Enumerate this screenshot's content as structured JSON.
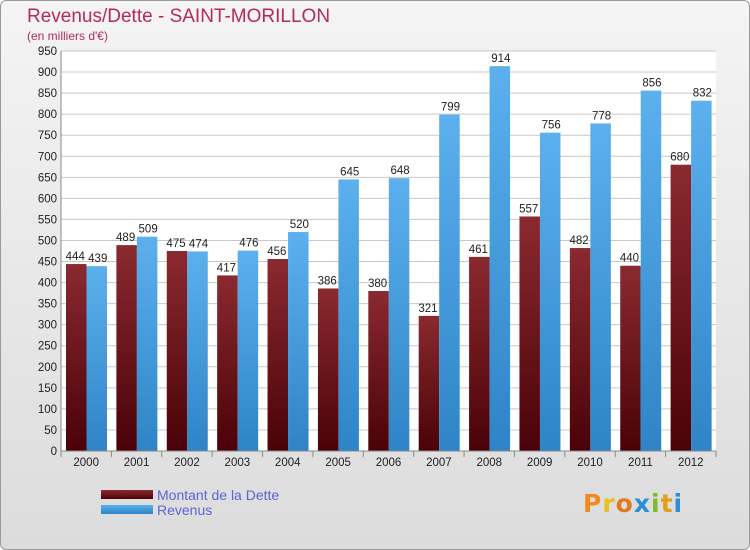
{
  "header": {
    "title": "Revenus/Dette - SAINT-MORILLON",
    "subtitle": "(en milliers d'€)"
  },
  "chart_data": {
    "type": "bar",
    "title": "Revenus/Dette - SAINT-MORILLON",
    "ylabel": "(en milliers d'€)",
    "xlabel": "",
    "categories": [
      "2000",
      "2001",
      "2002",
      "2003",
      "2004",
      "2005",
      "2006",
      "2007",
      "2008",
      "2009",
      "2010",
      "2011",
      "2012"
    ],
    "series": [
      {
        "name": "Montant de la Dette",
        "color": "#6e0e14",
        "values": [
          444,
          489,
          475,
          417,
          456,
          386,
          380,
          321,
          461,
          557,
          482,
          440,
          680
        ]
      },
      {
        "name": "Revenus",
        "color": "#4aa3e6",
        "values": [
          439,
          509,
          474,
          476,
          520,
          645,
          648,
          799,
          914,
          756,
          778,
          856,
          832
        ]
      }
    ],
    "ylim": [
      0,
      950
    ],
    "yticks": [
      0,
      50,
      100,
      150,
      200,
      250,
      300,
      350,
      400,
      450,
      500,
      550,
      600,
      650,
      700,
      750,
      800,
      850,
      900,
      950
    ],
    "grid": true,
    "legend_position": "bottom-left"
  },
  "legend": {
    "items": [
      {
        "label": "Montant de la Dette",
        "color": "#6e0e14"
      },
      {
        "label": "Revenus",
        "color": "#4aa3e6"
      }
    ]
  },
  "logo": {
    "letters": [
      "P",
      "r",
      "o",
      "x",
      "i",
      "t",
      "i"
    ],
    "colors": [
      "#f08a1a",
      "#e6c21e",
      "#e07a1e",
      "#2a8fd8",
      "#7dbb2a",
      "#e0a01e",
      "#2a8fd8"
    ]
  }
}
